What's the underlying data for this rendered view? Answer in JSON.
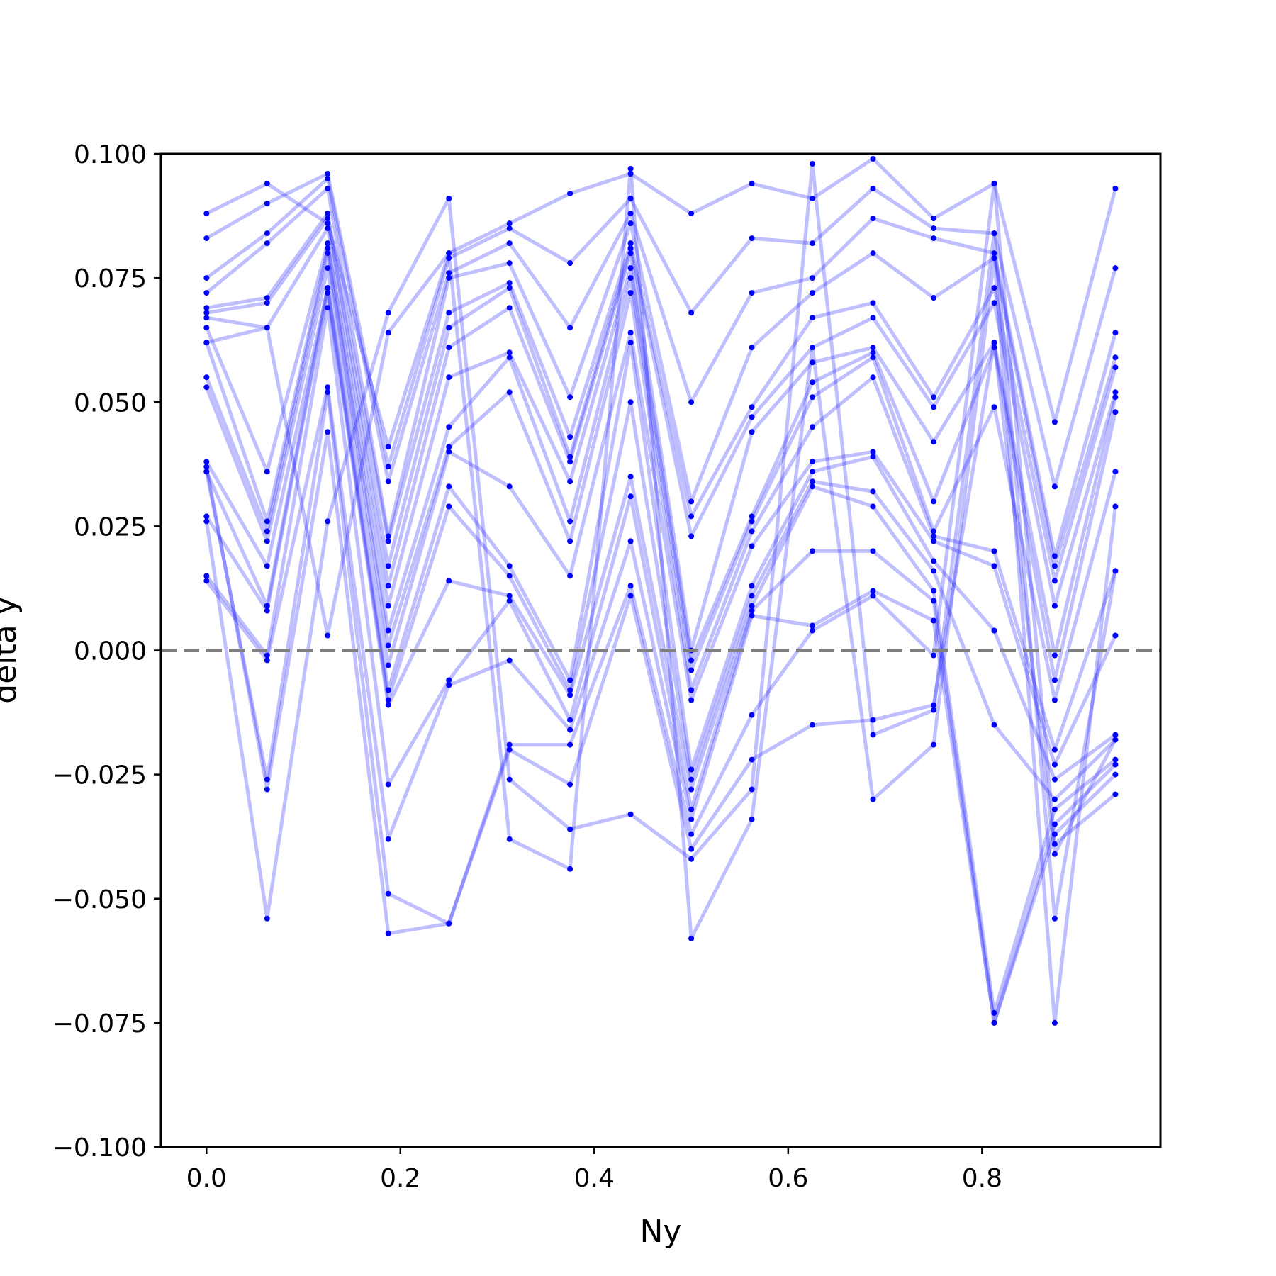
{
  "chart_data": {
    "type": "line",
    "xlabel": "Ny",
    "ylabel": "delta y",
    "xlim": [
      -0.047,
      0.984
    ],
    "ylim": [
      -0.1,
      0.1
    ],
    "xticks": [
      0.0,
      0.2,
      0.4,
      0.6,
      0.8
    ],
    "xtick_labels": [
      "0.0",
      "0.2",
      "0.4",
      "0.6",
      "0.8"
    ],
    "yticks": [
      -0.1,
      -0.075,
      -0.05,
      -0.025,
      0.0,
      0.025,
      0.05,
      0.075,
      0.1
    ],
    "ytick_labels": [
      "−0.100",
      "−0.075",
      "−0.050",
      "−0.025",
      "0.000",
      "0.025",
      "0.050",
      "0.075",
      "0.100"
    ],
    "reference_line": {
      "y": 0.0,
      "style": "dashed",
      "color": "#808080"
    },
    "line_color": "#0000ff",
    "line_alpha": 0.25,
    "marker_color": "#0000ff",
    "grid": false,
    "x": [
      0.0,
      0.0625,
      0.125,
      0.1875,
      0.25,
      0.3125,
      0.375,
      0.4375,
      0.5,
      0.5625,
      0.625,
      0.6875,
      0.75,
      0.8125,
      0.875,
      0.9375
    ],
    "series": [
      {
        "values": [
          0.088,
          0.094,
          0.086,
          0.041,
          0.08,
          0.086,
          0.092,
          0.096,
          0.088,
          0.094,
          0.091,
          0.099,
          0.087,
          0.094,
          0.046,
          0.093
        ]
      },
      {
        "values": [
          0.083,
          0.09,
          0.096,
          0.037,
          0.079,
          0.085,
          0.078,
          0.091,
          0.068,
          0.083,
          0.082,
          0.093,
          0.085,
          0.084,
          0.033,
          0.077
        ]
      },
      {
        "values": [
          0.075,
          0.084,
          0.095,
          0.034,
          0.076,
          0.082,
          0.065,
          0.088,
          0.05,
          0.072,
          0.075,
          0.087,
          0.083,
          0.08,
          0.019,
          0.064
        ]
      },
      {
        "values": [
          0.072,
          0.082,
          0.093,
          0.023,
          0.075,
          0.078,
          0.051,
          0.086,
          0.03,
          0.061,
          0.072,
          0.08,
          0.071,
          0.079,
          0.017,
          0.059
        ]
      },
      {
        "values": [
          0.069,
          0.071,
          0.088,
          0.022,
          0.068,
          0.074,
          0.043,
          0.082,
          0.027,
          0.049,
          0.067,
          0.07,
          0.051,
          0.073,
          0.014,
          0.057
        ]
      },
      {
        "values": [
          0.068,
          0.07,
          0.087,
          0.017,
          0.065,
          0.073,
          0.039,
          0.081,
          0.023,
          0.047,
          0.061,
          0.067,
          0.049,
          0.07,
          0.009,
          0.052
        ]
      },
      {
        "values": [
          0.067,
          0.065,
          0.085,
          0.013,
          0.061,
          0.069,
          0.038,
          0.08,
          0.0,
          0.044,
          0.058,
          0.061,
          0.042,
          0.062,
          -0.001,
          0.051
        ]
      },
      {
        "values": [
          0.065,
          0.036,
          0.082,
          0.009,
          0.055,
          0.06,
          0.034,
          0.077,
          -0.002,
          0.027,
          0.054,
          0.06,
          0.03,
          0.061,
          -0.006,
          0.048
        ]
      },
      {
        "values": [
          0.062,
          0.026,
          0.081,
          0.004,
          0.045,
          0.059,
          0.026,
          0.075,
          -0.004,
          0.026,
          0.051,
          0.059,
          0.024,
          0.049,
          -0.01,
          0.036
        ]
      },
      {
        "values": [
          0.055,
          0.024,
          0.08,
          0.001,
          0.041,
          0.052,
          0.022,
          0.072,
          -0.008,
          0.024,
          0.045,
          0.055,
          0.023,
          0.02,
          -0.02,
          0.016
        ]
      },
      {
        "values": [
          0.053,
          0.022,
          0.077,
          -0.003,
          0.04,
          0.033,
          0.015,
          0.064,
          -0.01,
          0.021,
          0.038,
          0.04,
          0.022,
          0.017,
          -0.023,
          0.003
        ]
      },
      {
        "values": [
          0.038,
          0.017,
          0.073,
          -0.008,
          0.033,
          0.017,
          -0.006,
          0.062,
          -0.024,
          0.013,
          0.036,
          0.039,
          0.018,
          0.004,
          -0.026,
          -0.017
        ]
      },
      {
        "values": [
          0.036,
          0.009,
          0.073,
          -0.01,
          0.029,
          0.015,
          -0.008,
          0.05,
          -0.026,
          0.011,
          0.034,
          0.032,
          0.016,
          -0.015,
          -0.03,
          -0.018
        ]
      },
      {
        "values": [
          0.027,
          0.008,
          0.072,
          -0.011,
          0.014,
          0.011,
          -0.009,
          0.035,
          -0.028,
          0.009,
          0.033,
          0.029,
          0.012,
          -0.073,
          -0.032,
          -0.022
        ]
      },
      {
        "values": [
          0.015,
          -0.001,
          0.069,
          -0.027,
          -0.006,
          0.01,
          -0.014,
          0.031,
          -0.032,
          0.008,
          0.02,
          0.02,
          0.01,
          -0.075,
          -0.035,
          -0.023
        ]
      },
      {
        "values": [
          0.014,
          -0.002,
          0.053,
          -0.038,
          -0.007,
          -0.002,
          -0.016,
          0.022,
          -0.034,
          0.007,
          0.005,
          0.012,
          0.006,
          -0.075,
          -0.037,
          -0.025
        ]
      },
      {
        "values": [
          0.036,
          -0.026,
          0.052,
          -0.049,
          -0.055,
          -0.019,
          -0.019,
          0.013,
          -0.037,
          -0.013,
          0.004,
          0.011,
          -0.001,
          0.094,
          -0.039,
          -0.029
        ]
      },
      {
        "values": [
          0.037,
          -0.028,
          0.044,
          -0.057,
          -0.055,
          -0.02,
          -0.027,
          0.011,
          -0.04,
          -0.022,
          -0.015,
          -0.014,
          -0.011,
          0.062,
          -0.041,
          -0.018
        ]
      },
      {
        "values": [
          0.026,
          -0.054,
          0.026,
          0.068,
          0.091,
          -0.026,
          -0.036,
          -0.033,
          -0.042,
          -0.028,
          0.098,
          -0.017,
          -0.012,
          0.084,
          -0.054,
          0.016
        ]
      },
      {
        "values": [
          0.062,
          0.065,
          0.003,
          0.064,
          0.08,
          -0.038,
          -0.044,
          0.097,
          -0.058,
          -0.034,
          0.061,
          -0.03,
          -0.019,
          0.079,
          -0.075,
          0.029
        ]
      }
    ]
  }
}
